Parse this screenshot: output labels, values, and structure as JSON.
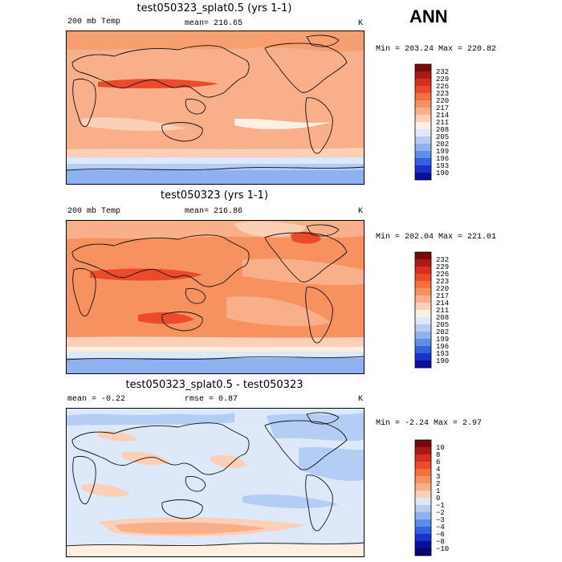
{
  "header": {
    "season": "ANN"
  },
  "chart_data": [
    {
      "type": "heatmap",
      "title": "test050323_splat0.5 (yrs 1-1)",
      "left_label": "200 mb Temp",
      "center_label": "mean= 216.65",
      "units": "K",
      "stats": "Min = 203.24 Max = 220.82",
      "colorbar": {
        "labels": [
          "232",
          "229",
          "226",
          "223",
          "220",
          "217",
          "214",
          "211",
          "208",
          "205",
          "202",
          "199",
          "196",
          "193",
          "190"
        ],
        "colors": [
          "#7a0a0a",
          "#a81b12",
          "#d62f1f",
          "#ec4a2c",
          "#f4713f",
          "#f7915f",
          "#f9b08a",
          "#fbd0b6",
          "#fdf0e3",
          "#dde9f9",
          "#b4cdf4",
          "#8db2ef",
          "#5e8fe8",
          "#3561e0",
          "#1733cc",
          "#0a0f9a"
        ]
      }
    },
    {
      "type": "heatmap",
      "title": "test050323 (yrs 1-1)",
      "left_label": "200 mb Temp",
      "center_label": "mean= 216.86",
      "units": "K",
      "stats": "Min = 202.04 Max = 221.01",
      "colorbar": {
        "labels": [
          "232",
          "229",
          "226",
          "223",
          "220",
          "217",
          "214",
          "211",
          "208",
          "205",
          "202",
          "199",
          "196",
          "193",
          "190"
        ],
        "colors": [
          "#7a0a0a",
          "#a81b12",
          "#d62f1f",
          "#ec4a2c",
          "#f4713f",
          "#f7915f",
          "#f9b08a",
          "#fbd0b6",
          "#fdf0e3",
          "#dde9f9",
          "#b4cdf4",
          "#8db2ef",
          "#5e8fe8",
          "#3561e0",
          "#1733cc",
          "#0a0f9a"
        ]
      }
    },
    {
      "type": "heatmap",
      "title": "test050323_splat0.5 - test050323",
      "left_label": "mean = -0.22",
      "center_label": "rmse = 0.87",
      "units": "K",
      "stats": "Min = -2.24 Max = 2.97",
      "colorbar": {
        "labels": [
          "10",
          "8",
          "6",
          "4",
          "3",
          "2",
          "1",
          "0",
          "−1",
          "−2",
          "−3",
          "−4",
          "−6",
          "−8",
          "−10"
        ],
        "colors": [
          "#7a0a0a",
          "#a81b12",
          "#d62f1f",
          "#ec4a2c",
          "#f4713f",
          "#f7915f",
          "#f9b08a",
          "#fbd0b6",
          "#dde9f9",
          "#b4cdf4",
          "#8db2ef",
          "#5e8fe8",
          "#3561e0",
          "#1733cc",
          "#0a0f9a",
          "#04066a"
        ]
      }
    }
  ]
}
